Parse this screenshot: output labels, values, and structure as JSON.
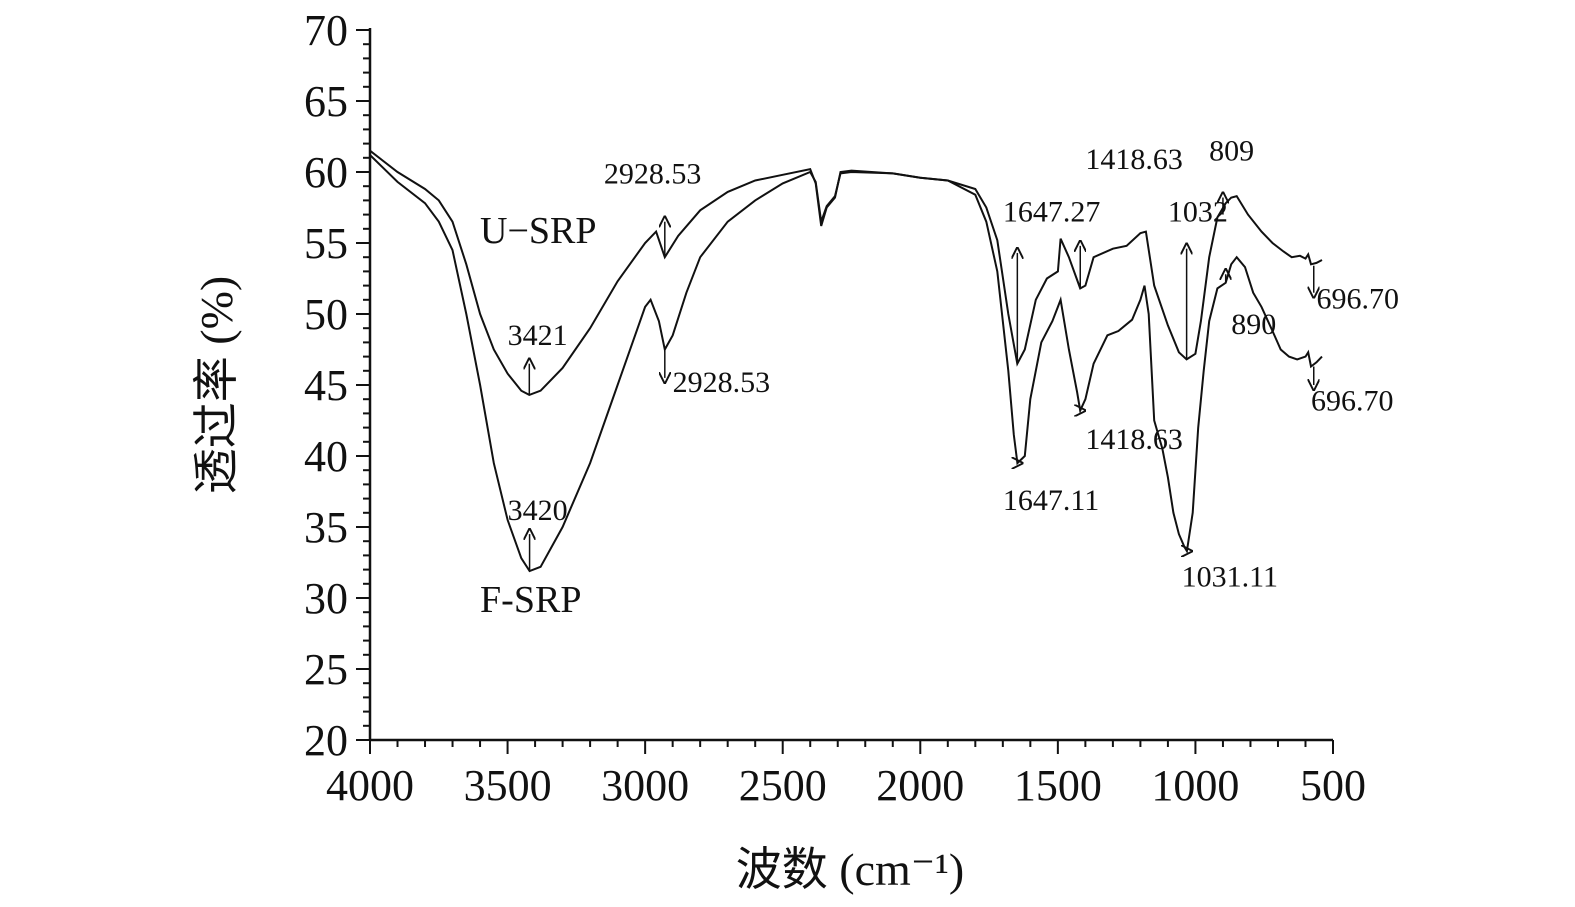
{
  "chart_data": {
    "type": "line",
    "title": "",
    "xlabel": "波数 (cm⁻¹)",
    "ylabel": "透过率 (%)",
    "xlim": [
      4000,
      500
    ],
    "ylim": [
      20,
      70
    ],
    "x_ticks": [
      "4000",
      "3500",
      "3000",
      "2500",
      "2000",
      "1500",
      "1000",
      "500"
    ],
    "y_ticks": [
      "20",
      "25",
      "30",
      "35",
      "40",
      "45",
      "50",
      "55",
      "60",
      "65",
      "70"
    ],
    "grid": false,
    "series": [
      {
        "name": "U−SRP",
        "points": [
          [
            4000,
            61.5
          ],
          [
            3900,
            60.0
          ],
          [
            3800,
            58.8
          ],
          [
            3750,
            58.0
          ],
          [
            3700,
            56.5
          ],
          [
            3650,
            53.5
          ],
          [
            3600,
            50.0
          ],
          [
            3550,
            47.5
          ],
          [
            3500,
            45.8
          ],
          [
            3450,
            44.6
          ],
          [
            3421,
            44.3
          ],
          [
            3380,
            44.6
          ],
          [
            3300,
            46.2
          ],
          [
            3200,
            49.0
          ],
          [
            3100,
            52.3
          ],
          [
            3000,
            55.0
          ],
          [
            2960,
            55.8
          ],
          [
            2928.53,
            54.0
          ],
          [
            2880,
            55.5
          ],
          [
            2800,
            57.3
          ],
          [
            2700,
            58.6
          ],
          [
            2600,
            59.4
          ],
          [
            2500,
            59.8
          ],
          [
            2400,
            60.2
          ],
          [
            2380,
            59.2
          ],
          [
            2360,
            56.2
          ],
          [
            2340,
            57.5
          ],
          [
            2310,
            58.2
          ],
          [
            2290,
            60.0
          ],
          [
            2250,
            60.1
          ],
          [
            2100,
            59.9
          ],
          [
            2000,
            59.6
          ],
          [
            1900,
            59.4
          ],
          [
            1800,
            58.8
          ],
          [
            1760,
            57.5
          ],
          [
            1720,
            55.2
          ],
          [
            1680,
            50.0
          ],
          [
            1647.27,
            46.5
          ],
          [
            1620,
            47.5
          ],
          [
            1580,
            51.0
          ],
          [
            1540,
            52.5
          ],
          [
            1500,
            53.0
          ],
          [
            1490,
            55.3
          ],
          [
            1460,
            54.0
          ],
          [
            1418.63,
            51.8
          ],
          [
            1400,
            52.0
          ],
          [
            1370,
            54.0
          ],
          [
            1300,
            54.6
          ],
          [
            1250,
            54.8
          ],
          [
            1200,
            55.7
          ],
          [
            1180,
            55.8
          ],
          [
            1150,
            52.0
          ],
          [
            1100,
            49.2
          ],
          [
            1060,
            47.3
          ],
          [
            1032,
            46.8
          ],
          [
            1000,
            47.2
          ],
          [
            980,
            49.5
          ],
          [
            950,
            54.0
          ],
          [
            920,
            56.8
          ],
          [
            890,
            57.8
          ],
          [
            870,
            58.2
          ],
          [
            850,
            58.3
          ],
          [
            809,
            57.0
          ],
          [
            760,
            55.8
          ],
          [
            720,
            55.0
          ],
          [
            680,
            54.4
          ],
          [
            650,
            54.0
          ],
          [
            620,
            54.1
          ],
          [
            600,
            53.9
          ],
          [
            590,
            54.2
          ],
          [
            580,
            53.5
          ],
          [
            560,
            53.6
          ],
          [
            540,
            53.8
          ]
        ]
      },
      {
        "name": "F-SRP",
        "points": [
          [
            4000,
            61.2
          ],
          [
            3900,
            59.3
          ],
          [
            3800,
            57.8
          ],
          [
            3750,
            56.5
          ],
          [
            3700,
            54.5
          ],
          [
            3650,
            50.0
          ],
          [
            3600,
            45.0
          ],
          [
            3550,
            39.5
          ],
          [
            3500,
            35.5
          ],
          [
            3450,
            32.8
          ],
          [
            3420,
            31.9
          ],
          [
            3380,
            32.2
          ],
          [
            3300,
            35.0
          ],
          [
            3200,
            39.5
          ],
          [
            3100,
            45.0
          ],
          [
            3000,
            50.5
          ],
          [
            2980,
            51.0
          ],
          [
            2950,
            49.5
          ],
          [
            2928.53,
            47.5
          ],
          [
            2900,
            48.5
          ],
          [
            2850,
            51.5
          ],
          [
            2800,
            54.0
          ],
          [
            2700,
            56.5
          ],
          [
            2600,
            58.0
          ],
          [
            2500,
            59.2
          ],
          [
            2400,
            60.0
          ],
          [
            2380,
            59.3
          ],
          [
            2360,
            56.5
          ],
          [
            2340,
            57.6
          ],
          [
            2310,
            58.3
          ],
          [
            2290,
            59.9
          ],
          [
            2250,
            60.0
          ],
          [
            2100,
            59.9
          ],
          [
            2000,
            59.6
          ],
          [
            1900,
            59.4
          ],
          [
            1800,
            58.4
          ],
          [
            1760,
            56.5
          ],
          [
            1720,
            53.0
          ],
          [
            1680,
            46.0
          ],
          [
            1660,
            41.5
          ],
          [
            1647.11,
            39.5
          ],
          [
            1620,
            40.0
          ],
          [
            1600,
            44.0
          ],
          [
            1560,
            48.0
          ],
          [
            1520,
            49.5
          ],
          [
            1500,
            50.5
          ],
          [
            1490,
            51.0
          ],
          [
            1460,
            47.5
          ],
          [
            1430,
            44.5
          ],
          [
            1418.63,
            43.2
          ],
          [
            1400,
            44.0
          ],
          [
            1370,
            46.5
          ],
          [
            1320,
            48.5
          ],
          [
            1280,
            48.8
          ],
          [
            1230,
            49.6
          ],
          [
            1200,
            51.0
          ],
          [
            1185,
            52.0
          ],
          [
            1170,
            50.0
          ],
          [
            1150,
            42.5
          ],
          [
            1120,
            40.5
          ],
          [
            1100,
            38.5
          ],
          [
            1080,
            36.0
          ],
          [
            1060,
            34.5
          ],
          [
            1040,
            33.6
          ],
          [
            1031.11,
            33.3
          ],
          [
            1010,
            36.0
          ],
          [
            990,
            42.0
          ],
          [
            970,
            46.0
          ],
          [
            950,
            49.5
          ],
          [
            920,
            51.8
          ],
          [
            890,
            52.2
          ],
          [
            870,
            53.5
          ],
          [
            850,
            54.0
          ],
          [
            820,
            53.3
          ],
          [
            790,
            51.5
          ],
          [
            760,
            50.5
          ],
          [
            720,
            48.8
          ],
          [
            690,
            47.5
          ],
          [
            660,
            47.0
          ],
          [
            630,
            46.8
          ],
          [
            600,
            47.0
          ],
          [
            590,
            47.3
          ],
          [
            580,
            46.3
          ],
          [
            560,
            46.6
          ],
          [
            540,
            47.0
          ]
        ]
      }
    ],
    "series_labels": [
      {
        "text": "U−SRP",
        "x": 3600,
        "y": 55.0
      },
      {
        "text": "F-SRP",
        "x": 3600,
        "y": 29.0
      }
    ],
    "annotations": [
      {
        "text": "3421",
        "x": 3421,
        "y": 44.3,
        "label_x": 3500,
        "label_y": 47.8,
        "arrow_from": 46.5
      },
      {
        "text": "2928.53",
        "x": 2928.53,
        "y": 54.0,
        "label_x": 3150,
        "label_y": 59.2,
        "arrow_from": 56.5
      },
      {
        "text": "3420",
        "x": 3420,
        "y": 31.9,
        "label_x": 3500,
        "label_y": 35.5,
        "arrow_from": 34.5
      },
      {
        "text": "2928.53",
        "x": 2928.53,
        "y": 47.5,
        "label_x": 2900,
        "label_y": 44.5,
        "arrow_from": 45.5
      },
      {
        "text": "1647.27",
        "x": 1647.27,
        "y": 46.5,
        "label_x": 1700,
        "label_y": 56.5,
        "arrow_from": 54.3
      },
      {
        "text": "1418.63",
        "x": 1418.63,
        "y": 51.8,
        "label_x": 1400,
        "label_y": 60.2,
        "arrow_from": 54.8
      },
      {
        "text": "1032",
        "x": 1032,
        "y": 46.8,
        "label_x": 1100,
        "label_y": 56.5,
        "arrow_from": 54.6
      },
      {
        "text": "809",
        "x": 900,
        "y": 57.0,
        "label_x": 950,
        "label_y": 60.8,
        "arrow_from": 58.2
      },
      {
        "text": "696.70",
        "x": 570,
        "y": 53.4,
        "label_x": 560,
        "label_y": 50.4,
        "arrow_from": 51.5
      },
      {
        "text": "1647.11",
        "x": 1647.11,
        "y": 39.5,
        "label_x": 1700,
        "label_y": 36.2,
        "arrow_from": 39.5
      },
      {
        "text": "1418.63",
        "x": 1418.63,
        "y": 43.2,
        "label_x": 1400,
        "label_y": 40.5,
        "arrow_from": 43.2
      },
      {
        "text": "1031.11",
        "x": 1031.11,
        "y": 33.3,
        "label_x": 1050,
        "label_y": 30.8,
        "arrow_from": 33.3
      },
      {
        "text": "890",
        "x": 890,
        "y": 52.2,
        "label_x": 870,
        "label_y": 48.6,
        "arrow_from": 52.8
      },
      {
        "text": "696.70",
        "x": 570,
        "y": 46.3,
        "label_x": 580,
        "label_y": 43.2,
        "arrow_from": 45.0
      }
    ]
  }
}
